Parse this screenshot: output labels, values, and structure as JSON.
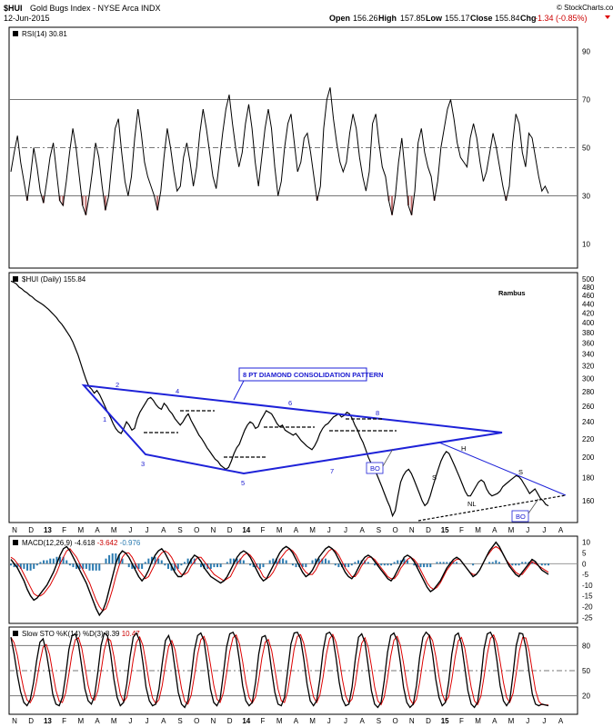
{
  "header": {
    "symbol": "$HUI",
    "name": "Gold Bugs Index - NYSE Arca INDX",
    "date": "12-Jun-2015",
    "open_label": "Open",
    "open": "156.26",
    "high_label": "High",
    "high": "157.85",
    "low_label": "Low",
    "low": "155.17",
    "close_label": "Close",
    "close": "155.84",
    "chg_label": "Chg",
    "chg": "-1.34 (-0.85%)",
    "watermark": "© StockCharts.com"
  },
  "chart_data": [
    {
      "type": "line",
      "panel": "rsi",
      "title": "RSI(14) 30.81",
      "y_ticks": [
        90,
        70,
        50,
        30,
        10
      ],
      "ylim": [
        0,
        100
      ],
      "reference_lines": [
        70,
        50,
        30
      ],
      "values": [
        40,
        48,
        55,
        44,
        36,
        28,
        38,
        50,
        42,
        32,
        27,
        36,
        46,
        52,
        40,
        28,
        26,
        36,
        48,
        58,
        50,
        38,
        26,
        22,
        30,
        40,
        52,
        46,
        34,
        24,
        30,
        44,
        58,
        62,
        48,
        36,
        30,
        38,
        54,
        66,
        56,
        44,
        38,
        34,
        30,
        24,
        32,
        46,
        58,
        50,
        40,
        32,
        34,
        46,
        52,
        44,
        34,
        42,
        56,
        66,
        58,
        48,
        38,
        33,
        44,
        56,
        66,
        72,
        60,
        50,
        42,
        48,
        60,
        68,
        58,
        44,
        34,
        46,
        58,
        66,
        58,
        42,
        30,
        36,
        50,
        60,
        64,
        52,
        40,
        44,
        54,
        56,
        48,
        38,
        28,
        34,
        58,
        70,
        75,
        62,
        52,
        44,
        40,
        44,
        56,
        64,
        58,
        46,
        38,
        32,
        40,
        60,
        64,
        52,
        42,
        38,
        28,
        22,
        30,
        44,
        54,
        40,
        26,
        22,
        32,
        52,
        58,
        48,
        42,
        38,
        28,
        36,
        50,
        58,
        66,
        70,
        62,
        52,
        46,
        44,
        42,
        54,
        60,
        54,
        44,
        36,
        40,
        48,
        56,
        50,
        42,
        34,
        28,
        34,
        52,
        64,
        60,
        48,
        42,
        56,
        54,
        46,
        38,
        32,
        34,
        31
      ]
    },
    {
      "type": "line",
      "panel": "price",
      "title": "$HUI (Daily) 155.84",
      "y_ticks": [
        500,
        480,
        460,
        440,
        420,
        400,
        380,
        360,
        340,
        320,
        300,
        280,
        260,
        240,
        220,
        200,
        180,
        160
      ],
      "ylog": true,
      "values": [
        495,
        492,
        488,
        480,
        476,
        470,
        466,
        460,
        456,
        450,
        446,
        442,
        438,
        433,
        428,
        422,
        416,
        410,
        402,
        396,
        388,
        380,
        372,
        362,
        350,
        338,
        324,
        310,
        298,
        288,
        284,
        278,
        282,
        276,
        268,
        260,
        252,
        246,
        238,
        232,
        228,
        226,
        232,
        240,
        236,
        230,
        232,
        244,
        252,
        258,
        264,
        270,
        272,
        268,
        262,
        258,
        256,
        264,
        260,
        254,
        250,
        244,
        240,
        236,
        240,
        246,
        250,
        242,
        236,
        230,
        224,
        220,
        215,
        210,
        206,
        202,
        198,
        196,
        192,
        190,
        188,
        190,
        196,
        204,
        210,
        214,
        222,
        230,
        236,
        240,
        238,
        232,
        234,
        242,
        248,
        254,
        252,
        250,
        244,
        238,
        234,
        236,
        230,
        228,
        226,
        224,
        226,
        222,
        218,
        215,
        212,
        210,
        208,
        212,
        218,
        226,
        232,
        236,
        238,
        242,
        246,
        248,
        250,
        246,
        248,
        252,
        250,
        244,
        236,
        230,
        222,
        216,
        208,
        200,
        194,
        190,
        184,
        178,
        172,
        166,
        160,
        155,
        148,
        152,
        164,
        176,
        182,
        186,
        188,
        184,
        178,
        172,
        166,
        160,
        156,
        158,
        164,
        172,
        180,
        188,
        196,
        202,
        206,
        204,
        198,
        192,
        186,
        180,
        174,
        168,
        164,
        164,
        168,
        172,
        176,
        178,
        176,
        170,
        166,
        164,
        165,
        166,
        168,
        172,
        174,
        176,
        178,
        180,
        182,
        181,
        178,
        174,
        170,
        166,
        168,
        170,
        166,
        162,
        160,
        157,
        155.84
      ],
      "annotations": {
        "pattern_label": "8 PT DIAMOND CONSOLIDATION PATTERN",
        "author": "Rambus",
        "points": [
          "1",
          "2",
          "3",
          "4",
          "5",
          "6",
          "7",
          "8"
        ],
        "breakout_1": "BO",
        "breakout_2": "BO",
        "head": "H",
        "shoulder_left": "S",
        "shoulder_right": "S",
        "neckline": "NL"
      }
    },
    {
      "type": "line",
      "panel": "macd",
      "title_prefix": "MACD(12,26,9)",
      "macd": "-4.618",
      "signal": "-3.642",
      "histogram": "-0.976",
      "y_ticks": [
        10,
        5,
        0,
        -5,
        -10,
        -15,
        -20,
        -25
      ],
      "ylim": [
        -27,
        12
      ],
      "values": [
        2,
        0,
        -2,
        -5,
        -8,
        -12,
        -15,
        -17,
        -16,
        -14,
        -12,
        -10,
        -7,
        -4,
        0,
        4,
        7,
        8,
        6,
        3,
        0,
        -3,
        -6,
        -9,
        -13,
        -17,
        -21,
        -24,
        -22,
        -18,
        -12,
        -6,
        0,
        4,
        6,
        5,
        3,
        0,
        -3,
        -6,
        -8,
        -6,
        -3,
        1,
        4,
        6,
        7,
        5,
        2,
        -1,
        -4,
        -6,
        -6,
        -4,
        -1,
        2,
        4,
        3,
        1,
        -2,
        -4,
        -6,
        -7,
        -8,
        -9,
        -8,
        -6,
        -3,
        0,
        3,
        5,
        6,
        5,
        3,
        0,
        -3,
        -6,
        -8,
        -7,
        -4,
        -1,
        2,
        5,
        7,
        8,
        7,
        5,
        2,
        -1,
        -4,
        -6,
        -5,
        -3,
        0,
        3,
        5,
        7,
        8,
        7,
        5,
        2,
        -1,
        -4,
        -6,
        -7,
        -5,
        -2,
        1,
        3,
        4,
        3,
        1,
        -1,
        -3,
        -5,
        -7,
        -8,
        -6,
        -3,
        0,
        3,
        4,
        3,
        1,
        -2,
        -5,
        -8,
        -11,
        -13,
        -12,
        -10,
        -8,
        -5,
        -2,
        0,
        2,
        3,
        2,
        0,
        -2,
        -4,
        -6,
        -5,
        -3,
        0,
        3,
        6,
        8,
        10,
        8,
        5,
        2,
        -1,
        -3,
        -5,
        -6,
        -4,
        -2,
        0,
        2,
        1,
        -1,
        -3,
        -4,
        -5
      ],
      "signal_values": [
        3,
        2,
        0,
        -2,
        -5,
        -8,
        -11,
        -14,
        -15,
        -15,
        -14,
        -12,
        -10,
        -7,
        -4,
        0,
        3,
        6,
        7,
        5,
        3,
        0,
        -3,
        -6,
        -9,
        -13,
        -17,
        -20,
        -22,
        -21,
        -17,
        -12,
        -6,
        -1,
        3,
        5,
        5,
        3,
        0,
        -3,
        -5,
        -7,
        -6,
        -3,
        0,
        3,
        5,
        6,
        5,
        3,
        0,
        -3,
        -5,
        -5,
        -4,
        -1,
        1,
        3,
        3,
        1,
        -1,
        -3,
        -5,
        -6,
        -7,
        -8,
        -7,
        -6,
        -3,
        0,
        2,
        4,
        5,
        4,
        2,
        -1,
        -3,
        -6,
        -7,
        -6,
        -4,
        -1,
        2,
        4,
        6,
        7,
        6,
        4,
        1,
        -2,
        -4,
        -5,
        -5,
        -3,
        0,
        2,
        4,
        6,
        7,
        6,
        4,
        1,
        -2,
        -4,
        -6,
        -6,
        -4,
        -1,
        1,
        3,
        3,
        2,
        0,
        -2,
        -4,
        -6,
        -7,
        -7,
        -5,
        -2,
        0,
        2,
        3,
        2,
        0,
        -3,
        -6,
        -9,
        -11,
        -12,
        -11,
        -9,
        -6,
        -3,
        -1,
        1,
        2,
        2,
        0,
        -2,
        -4,
        -5,
        -5,
        -3,
        0,
        3,
        5,
        7,
        8,
        7,
        5,
        2,
        0,
        -2,
        -4,
        -5,
        -5,
        -3,
        -1,
        1,
        0,
        -1,
        -2,
        -3,
        -4
      ]
    },
    {
      "type": "line",
      "panel": "sto",
      "title_prefix": "Slow STO %K(14) %D(3)",
      "k": "8.39",
      "d": "10.47",
      "y_ticks": [
        80,
        50,
        20
      ],
      "ylim": [
        0,
        100
      ],
      "reference_lines": [
        80,
        50,
        20
      ],
      "k_values": [
        90,
        70,
        45,
        25,
        12,
        8,
        15,
        35,
        62,
        84,
        88,
        72,
        48,
        22,
        10,
        8,
        18,
        44,
        75,
        92,
        94,
        82,
        55,
        28,
        14,
        10,
        20,
        48,
        80,
        95,
        92,
        70,
        40,
        18,
        8,
        12,
        34,
        66,
        90,
        95,
        86,
        60,
        30,
        14,
        8,
        10,
        28,
        58,
        86,
        92,
        80,
        52,
        24,
        10,
        6,
        14,
        42,
        74,
        92,
        95,
        86,
        58,
        28,
        12,
        8,
        16,
        46,
        78,
        94,
        96,
        88,
        62,
        32,
        14,
        8,
        12,
        36,
        70,
        90,
        92,
        80,
        50,
        24,
        10,
        8,
        18,
        50,
        82,
        95,
        96,
        88,
        64,
        34,
        14,
        8,
        14,
        40,
        74,
        94,
        96,
        90,
        66,
        36,
        16,
        8,
        10,
        30,
        64,
        90,
        94,
        84,
        56,
        26,
        10,
        6,
        12,
        38,
        72,
        92,
        95,
        86,
        60,
        30,
        12,
        6,
        10,
        32,
        66,
        90,
        96,
        92,
        70,
        40,
        18,
        8,
        12,
        36,
        70,
        92,
        95,
        82,
        54,
        26,
        10,
        6,
        12,
        40,
        76,
        94,
        96,
        88,
        62,
        32,
        14,
        8,
        14,
        46,
        80,
        95,
        94,
        78,
        48,
        22,
        10,
        8,
        10,
        9,
        8
      ]
    }
  ],
  "x_axis": {
    "labels": [
      "N",
      "D",
      "13",
      "F",
      "M",
      "A",
      "M",
      "J",
      "J",
      "A",
      "S",
      "O",
      "N",
      "D",
      "14",
      "F",
      "M",
      "A",
      "M",
      "J",
      "J",
      "A",
      "S",
      "O",
      "N",
      "D",
      "15",
      "F",
      "M",
      "A",
      "M",
      "J",
      "J",
      "A"
    ]
  }
}
